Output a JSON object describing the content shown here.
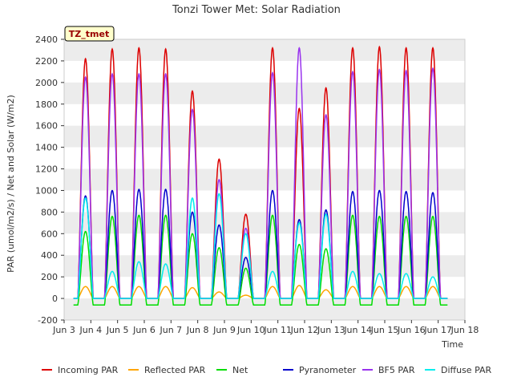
{
  "chart_data": {
    "type": "line",
    "title": "Tonzi Tower Met: Solar Radiation",
    "xlabel": "Time",
    "ylabel": "PAR (umol/m2/s) / Net and Solar (W/m2)",
    "tag": "TZ_tmet",
    "ylim": [
      -200,
      2400
    ],
    "xlim": [
      3,
      18
    ],
    "grid": "horizontal bands",
    "legend_position": "bottom",
    "x_ticks": [
      {
        "x": 3,
        "label": "Jun 3"
      },
      {
        "x": 4,
        "label": "Jun 4"
      },
      {
        "x": 5,
        "label": "Jun 5"
      },
      {
        "x": 6,
        "label": "Jun 6"
      },
      {
        "x": 7,
        "label": "Jun 7"
      },
      {
        "x": 8,
        "label": "Jun 8"
      },
      {
        "x": 9,
        "label": "Jun 9"
      },
      {
        "x": 10,
        "label": "Jun 10"
      },
      {
        "x": 11,
        "label": "Jun 11"
      },
      {
        "x": 12,
        "label": "Jun 12"
      },
      {
        "x": 13,
        "label": "Jun 13"
      },
      {
        "x": 14,
        "label": "Jun 14"
      },
      {
        "x": 15,
        "label": "Jun 15"
      },
      {
        "x": 16,
        "label": "Jun 16"
      },
      {
        "x": 17,
        "label": "Jun 17"
      },
      {
        "x": 18,
        "label": "Jun 18"
      }
    ],
    "y_ticks": [
      -200,
      0,
      200,
      400,
      600,
      800,
      1000,
      1200,
      1400,
      1600,
      1800,
      2000,
      2200,
      2400
    ],
    "days": [
      3.8,
      4.8,
      5.8,
      6.8,
      7.8,
      8.8,
      9.8,
      10.8,
      11.8,
      12.8,
      13.8,
      14.8,
      15.8,
      16.8
    ],
    "daily_peaks": {
      "Incoming PAR": [
        2220,
        2310,
        2320,
        2310,
        1920,
        1290,
        780,
        2320,
        1760,
        1950,
        2320,
        2330,
        2320,
        2320
      ],
      "Reflected PAR": [
        110,
        110,
        110,
        110,
        100,
        60,
        30,
        110,
        120,
        80,
        110,
        110,
        110,
        110
      ],
      "Net": [
        620,
        760,
        770,
        770,
        600,
        470,
        280,
        770,
        500,
        460,
        770,
        760,
        760,
        760
      ],
      "Pyranometer": [
        950,
        1000,
        1010,
        1010,
        800,
        680,
        380,
        1000,
        730,
        820,
        990,
        1000,
        990,
        980
      ],
      "BF5 PAR": [
        2050,
        2080,
        2080,
        2080,
        1750,
        1100,
        650,
        2090,
        2320,
        1700,
        2100,
        2120,
        2110,
        2130
      ],
      "Diffuse PAR": [
        930,
        250,
        340,
        320,
        930,
        970,
        600,
        250,
        700,
        780,
        250,
        230,
        230,
        200
      ]
    },
    "night_values": {
      "Incoming PAR": 0,
      "Reflected PAR": 0,
      "Net": -60,
      "Pyranometer": 0,
      "BF5 PAR": 0,
      "Diffuse PAR": 0
    },
    "series": [
      {
        "name": "Incoming PAR",
        "color": "#dd0000"
      },
      {
        "name": "Reflected PAR",
        "color": "#ffa500"
      },
      {
        "name": "Net",
        "color": "#00dd00"
      },
      {
        "name": "Pyranometer",
        "color": "#0000cc"
      },
      {
        "name": "BF5 PAR",
        "color": "#9933ee"
      },
      {
        "name": "Diffuse PAR",
        "color": "#00eeee"
      }
    ]
  }
}
